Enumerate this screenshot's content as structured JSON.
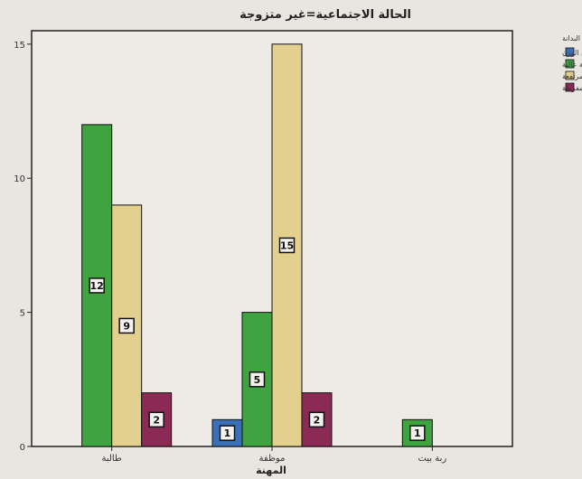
{
  "chart_data": {
    "type": "bar",
    "title": "الحالة الاجتماعية=غير متزوجة",
    "xlabel": "المهنة",
    "ylabel": "",
    "categories": [
      "طالبة",
      "موظفة",
      "ربة بيت"
    ],
    "series": [
      {
        "name": "زيادة في الوزن",
        "values": [
          0,
          1,
          0
        ],
        "color": "#3b6fb6"
      },
      {
        "name": "بدانة عالية",
        "values": [
          12,
          5,
          1
        ],
        "color": "#3fa33f"
      },
      {
        "name": "بدانة مرتفعة",
        "values": [
          9,
          15,
          0
        ],
        "color": "#e3cf8e"
      },
      {
        "name": "بدانة مفرطة",
        "values": [
          2,
          2,
          0
        ],
        "color": "#8a2a55"
      }
    ],
    "ylim": [
      0,
      15.5
    ],
    "yticks": [
      0,
      5,
      10,
      15
    ],
    "legend_title": "البدانة",
    "legend_position": "right",
    "grid": false
  }
}
